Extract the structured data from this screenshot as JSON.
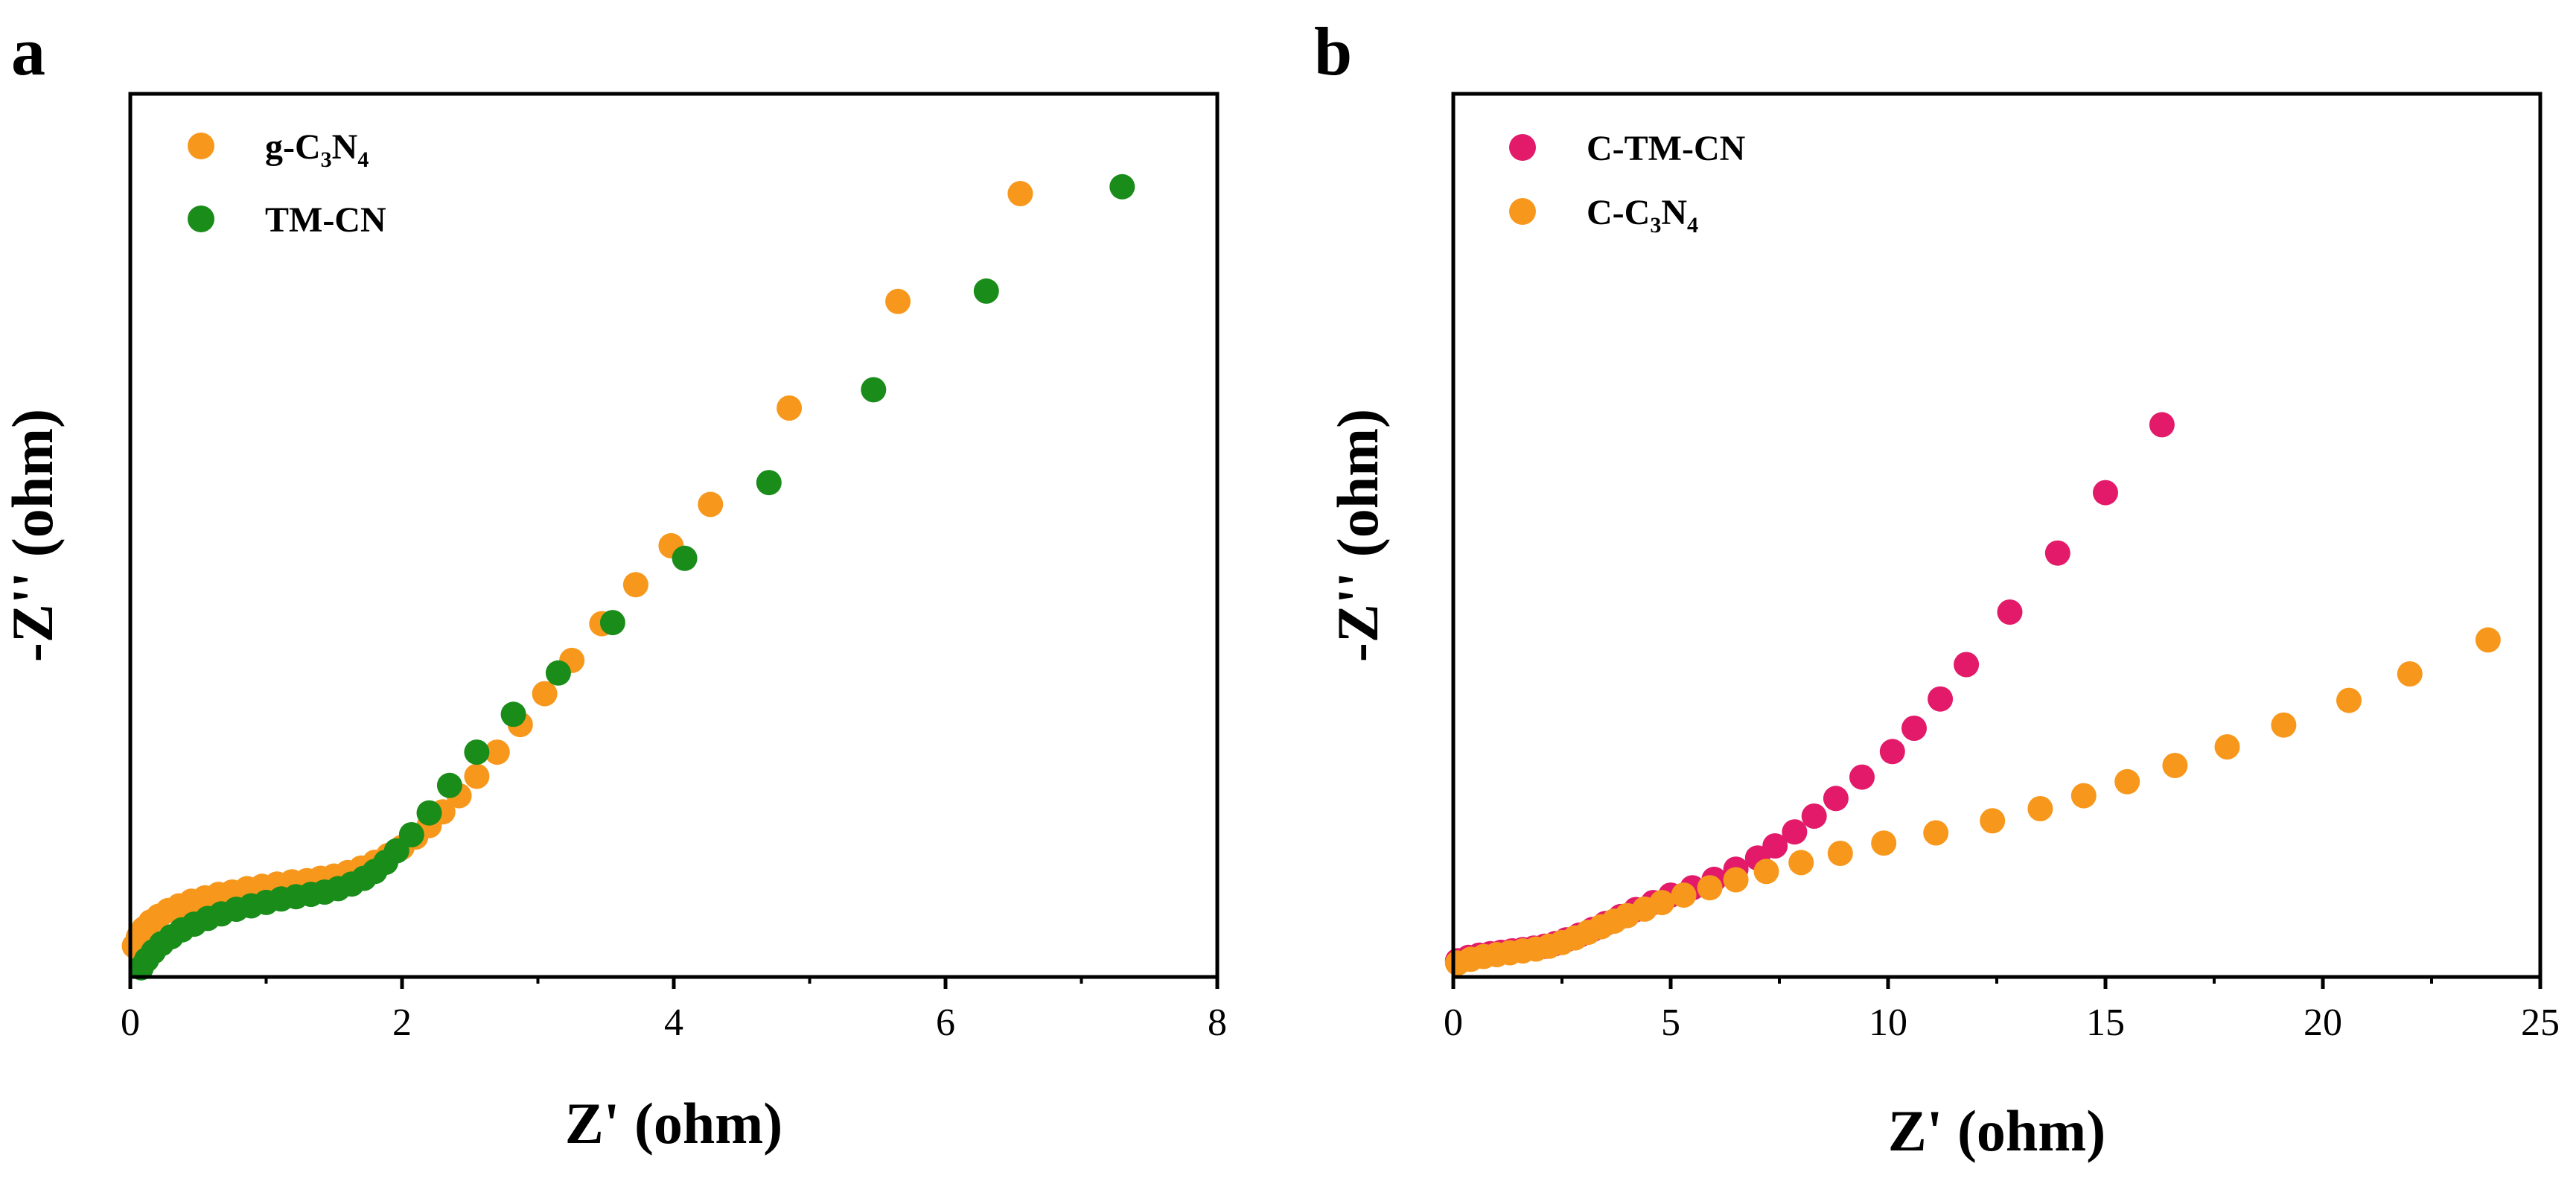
{
  "chart_data": [
    {
      "panel_label": "a",
      "type": "scatter",
      "xlabel": "Z' (ohm)",
      "ylabel": "-Z'' (ohm)",
      "xlim": [
        0,
        8
      ],
      "ylim": [
        0,
        7.7
      ],
      "x_ticks": [
        0,
        2,
        4,
        6,
        8
      ],
      "x_tick_labels": [
        "0",
        "2",
        "4",
        "6",
        "8"
      ],
      "grid": false,
      "legend_position": "top-left",
      "series": [
        {
          "name": "g-C3N4",
          "name_parts": [
            "g-C",
            "3",
            "N",
            "4"
          ],
          "color": "#F7981D",
          "x": [
            0.03,
            0.06,
            0.1,
            0.15,
            0.21,
            0.28,
            0.36,
            0.45,
            0.55,
            0.65,
            0.75,
            0.86,
            0.97,
            1.08,
            1.19,
            1.3,
            1.4,
            1.5,
            1.6,
            1.7,
            1.8,
            1.9,
            2.0,
            2.1,
            2.2,
            2.3,
            2.42,
            2.55,
            2.7,
            2.87,
            3.05,
            3.25,
            3.47,
            3.72,
            3.98,
            4.27,
            4.85,
            5.65,
            6.55
          ],
          "y": [
            0.27,
            0.35,
            0.42,
            0.48,
            0.53,
            0.58,
            0.62,
            0.66,
            0.69,
            0.72,
            0.74,
            0.77,
            0.79,
            0.81,
            0.83,
            0.84,
            0.86,
            0.88,
            0.91,
            0.95,
            1.0,
            1.06,
            1.13,
            1.22,
            1.32,
            1.44,
            1.58,
            1.75,
            1.96,
            2.2,
            2.47,
            2.76,
            3.08,
            3.42,
            3.76,
            4.12,
            4.96,
            5.89,
            6.83
          ]
        },
        {
          "name": "TM-CN",
          "name_parts": [
            "TM-CN"
          ],
          "color": "#198C19",
          "x": [
            0.08,
            0.12,
            0.17,
            0.23,
            0.3,
            0.38,
            0.47,
            0.57,
            0.67,
            0.78,
            0.89,
            1.0,
            1.11,
            1.22,
            1.33,
            1.43,
            1.53,
            1.63,
            1.72,
            1.8,
            1.88,
            1.96,
            2.07,
            2.2,
            2.35,
            2.55,
            2.82,
            3.15,
            3.55,
            4.08,
            4.7,
            5.47,
            6.3,
            7.3
          ],
          "y": [
            0.08,
            0.15,
            0.22,
            0.29,
            0.35,
            0.41,
            0.46,
            0.51,
            0.55,
            0.59,
            0.62,
            0.65,
            0.68,
            0.7,
            0.72,
            0.74,
            0.77,
            0.81,
            0.86,
            0.92,
            1.0,
            1.1,
            1.24,
            1.43,
            1.67,
            1.96,
            2.29,
            2.65,
            3.09,
            3.65,
            4.31,
            5.12,
            5.98,
            6.89
          ]
        }
      ]
    },
    {
      "panel_label": "b",
      "type": "scatter",
      "xlabel": "Z' (ohm)",
      "ylabel": "-Z'' (ohm)",
      "xlim": [
        0,
        25
      ],
      "ylim": [
        0,
        19
      ],
      "x_ticks": [
        0,
        5,
        10,
        15,
        20,
        25
      ],
      "x_tick_labels": [
        "0",
        "5",
        "10",
        "15",
        "20",
        "25"
      ],
      "grid": false,
      "legend_position": "top-left",
      "series": [
        {
          "name": "C-TM-CN",
          "name_parts": [
            "C-TM-CN"
          ],
          "color": "#E21A69",
          "x": [
            0.1,
            0.35,
            0.6,
            0.85,
            1.1,
            1.35,
            1.6,
            1.85,
            2.1,
            2.35,
            2.6,
            2.9,
            3.2,
            3.5,
            3.85,
            4.2,
            4.6,
            5.0,
            5.5,
            6.0,
            6.5,
            7.0,
            7.4,
            7.85,
            8.3,
            8.8,
            9.4,
            10.1,
            10.6,
            11.2,
            11.8,
            12.8,
            13.9,
            15.0,
            16.3
          ],
          "y": [
            0.35,
            0.42,
            0.47,
            0.5,
            0.53,
            0.56,
            0.59,
            0.62,
            0.66,
            0.72,
            0.8,
            0.9,
            1.02,
            1.15,
            1.3,
            1.45,
            1.6,
            1.76,
            1.92,
            2.1,
            2.32,
            2.56,
            2.82,
            3.12,
            3.46,
            3.84,
            4.3,
            4.85,
            5.35,
            5.98,
            6.72,
            7.85,
            9.12,
            10.42,
            11.88
          ]
        },
        {
          "name": "C-C3N4",
          "name_parts": [
            "C-C",
            "3",
            "N",
            "4"
          ],
          "color": "#F7981D",
          "x": [
            0.1,
            0.4,
            0.7,
            1.0,
            1.3,
            1.6,
            1.9,
            2.2,
            2.5,
            2.8,
            3.1,
            3.4,
            3.7,
            4.0,
            4.4,
            4.8,
            5.3,
            5.9,
            6.5,
            7.2,
            8.0,
            8.9,
            9.9,
            11.1,
            12.4,
            13.5,
            14.5,
            15.5,
            16.6,
            17.8,
            19.1,
            20.6,
            22.0,
            23.8
          ],
          "y": [
            0.3,
            0.38,
            0.44,
            0.48,
            0.52,
            0.56,
            0.6,
            0.66,
            0.74,
            0.84,
            0.96,
            1.08,
            1.2,
            1.32,
            1.46,
            1.6,
            1.76,
            1.92,
            2.09,
            2.27,
            2.46,
            2.66,
            2.88,
            3.1,
            3.36,
            3.62,
            3.9,
            4.2,
            4.55,
            4.95,
            5.42,
            5.95,
            6.52,
            7.25
          ]
        }
      ]
    }
  ]
}
